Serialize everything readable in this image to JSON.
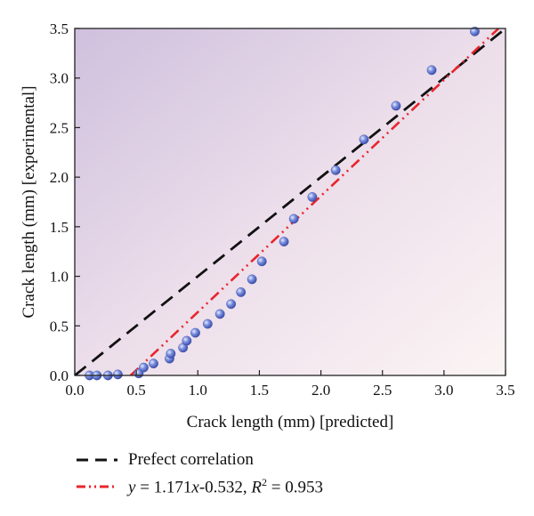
{
  "chart_data": {
    "type": "scatter",
    "xlabel": "Crack length (mm) [predicted]",
    "ylabel": "Crack length (mm) [experimental]",
    "xlim": [
      0.0,
      3.5
    ],
    "ylim": [
      0.0,
      3.5
    ],
    "xticks": [
      "0.0",
      "0.5",
      "1.0",
      "1.5",
      "2.0",
      "2.5",
      "3.0",
      "3.5"
    ],
    "yticks": [
      "0.0",
      "0.5",
      "1.0",
      "1.5",
      "2.0",
      "2.5",
      "3.0",
      "3.5"
    ],
    "grid": false,
    "legend_position": "bottom",
    "background": "purple-to-white gradient",
    "series": [
      {
        "type": "scatter",
        "color": "#6f86d6",
        "points": [
          [
            0.12,
            0.0
          ],
          [
            0.18,
            0.0
          ],
          [
            0.27,
            0.0
          ],
          [
            0.35,
            0.01
          ],
          [
            0.52,
            0.02
          ],
          [
            0.56,
            0.08
          ],
          [
            0.64,
            0.12
          ],
          [
            0.77,
            0.17
          ],
          [
            0.78,
            0.22
          ],
          [
            0.88,
            0.28
          ],
          [
            0.91,
            0.35
          ],
          [
            0.98,
            0.43
          ],
          [
            1.08,
            0.52
          ],
          [
            1.18,
            0.62
          ],
          [
            1.27,
            0.72
          ],
          [
            1.35,
            0.84
          ],
          [
            1.44,
            0.97
          ],
          [
            1.52,
            1.15
          ],
          [
            1.7,
            1.35
          ],
          [
            1.78,
            1.58
          ],
          [
            1.93,
            1.8
          ],
          [
            2.12,
            2.07
          ],
          [
            2.35,
            2.38
          ],
          [
            2.61,
            2.72
          ],
          [
            2.9,
            3.08
          ],
          [
            3.25,
            3.47
          ]
        ]
      },
      {
        "type": "line",
        "color": "#111111",
        "style": "dashed",
        "points": [
          [
            0.0,
            0.0
          ],
          [
            3.5,
            3.5
          ]
        ]
      },
      {
        "type": "line",
        "color": "#e8252b",
        "style": "dash-dot-dot",
        "points": [
          [
            0.454,
            0.0
          ],
          [
            3.443,
            3.5
          ]
        ]
      }
    ]
  },
  "legend": {
    "perfect_label": "Prefect correlation",
    "fit_y": "y",
    "fit_eq": " = 1.171",
    "fit_x": "x",
    "fit_tail": "-0.532, ",
    "fit_r": "R",
    "fit_sup": "2",
    "fit_val": " = 0.953"
  }
}
